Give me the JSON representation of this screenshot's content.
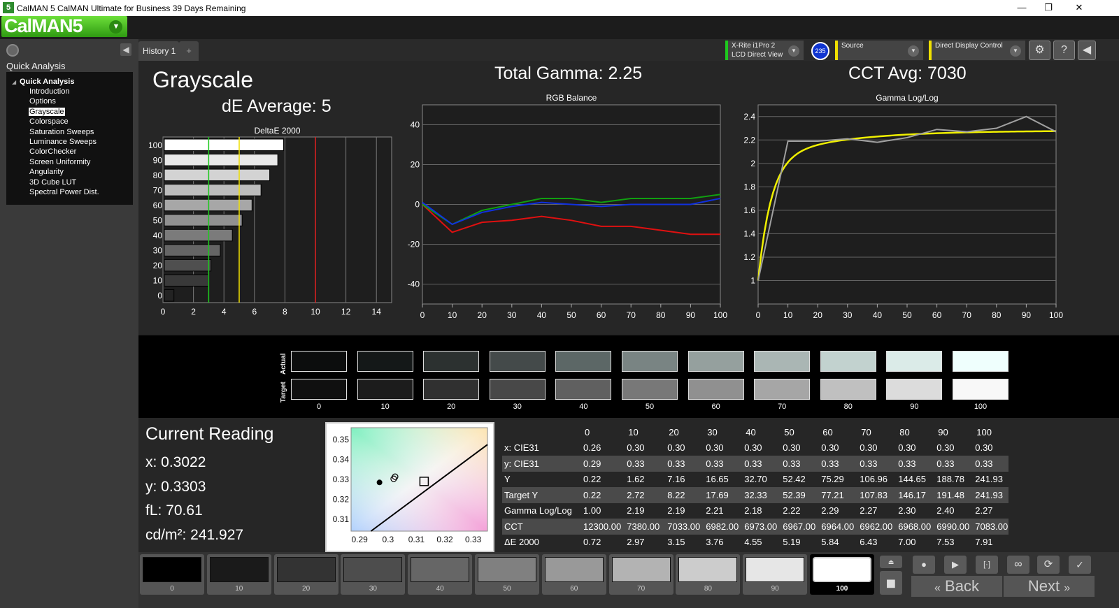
{
  "window": {
    "title": "CalMAN 5 CalMAN Ultimate for Business 39 Days Remaining",
    "icon_label": "5",
    "minimize": "—",
    "maximize": "❐",
    "close": "✕"
  },
  "logo": {
    "text": "CalMAN5",
    "caret_icon": "chevron-down-icon"
  },
  "sidebar": {
    "title": "Quick Analysis",
    "root": "Quick Analysis",
    "items": [
      "Introduction",
      "Options",
      "Grayscale",
      "Colorspace",
      "Saturation Sweeps",
      "Luminance Sweeps",
      "ColorChecker",
      "Screen Uniformity",
      "Angularity",
      "3D Cube LUT",
      "Spectral Power Dist."
    ],
    "selected": "Grayscale"
  },
  "tabs": {
    "history": "History 1",
    "add": "+"
  },
  "devices": {
    "meter_line1": "X-Rite i1Pro 2",
    "meter_line2": "LCD Direct View",
    "meter_badge": "235",
    "source": "Source",
    "display": "Direct Display Control",
    "accent_meter": "#1ec81e",
    "accent_source": "#f0e000",
    "accent_display": "#f0e000"
  },
  "headline": {
    "title": "Grayscale",
    "de_average": "dE Average: 5",
    "total_gamma": "Total Gamma: 2.25",
    "cct_avg": "CCT Avg: 7030"
  },
  "chart_data": [
    {
      "type": "bar",
      "title": "DeltaE 2000",
      "orientation": "horizontal",
      "categories": [
        "100",
        "90",
        "80",
        "70",
        "60",
        "50",
        "40",
        "30",
        "20",
        "10",
        "0"
      ],
      "values": [
        7.91,
        7.53,
        7.0,
        6.43,
        5.84,
        5.19,
        4.55,
        3.76,
        3.15,
        2.97,
        0.72
      ],
      "xlim": [
        0,
        15
      ],
      "xticks": [
        "0",
        "2",
        "4",
        "6",
        "8",
        "10",
        "12",
        "14"
      ],
      "reference_lines": [
        {
          "value": 3,
          "color": "#1ec81e"
        },
        {
          "value": 5,
          "color": "#f0e000"
        },
        {
          "value": 10,
          "color": "#e02020"
        }
      ]
    },
    {
      "type": "line",
      "title": "RGB Balance",
      "x": [
        0,
        10,
        20,
        30,
        40,
        50,
        60,
        70,
        80,
        90,
        100
      ],
      "ylim": [
        -50,
        50
      ],
      "yticks": [
        "40",
        "20",
        "0",
        "-20",
        "-40"
      ],
      "xticks": [
        "0",
        "10",
        "20",
        "30",
        "40",
        "50",
        "60",
        "70",
        "80",
        "90",
        "100"
      ],
      "series": [
        {
          "color": "#e01010",
          "values": [
            0,
            -14,
            -9,
            -8,
            -6,
            -8,
            -11,
            -11,
            -13,
            -15,
            -15
          ]
        },
        {
          "color": "#10a010",
          "values": [
            0,
            -10,
            -3,
            0,
            3,
            3,
            1,
            3,
            3,
            3,
            5
          ]
        },
        {
          "color": "#1030e0",
          "values": [
            1,
            -10,
            -4,
            -1,
            1,
            0,
            -1,
            0,
            0,
            0,
            3
          ]
        }
      ]
    },
    {
      "type": "line",
      "title": "Gamma Log/Log",
      "x": [
        0,
        10,
        20,
        30,
        40,
        50,
        60,
        70,
        80,
        90,
        100
      ],
      "ylim": [
        0.8,
        2.5
      ],
      "yticks": [
        "2.4",
        "2.2",
        "2",
        "1.8",
        "1.6",
        "1.4",
        "1.2",
        "1"
      ],
      "xticks": [
        "0",
        "10",
        "20",
        "30",
        "40",
        "50",
        "60",
        "70",
        "80",
        "90",
        "100"
      ],
      "series": [
        {
          "color": "#a0a0a0",
          "values": [
            1.0,
            2.19,
            2.19,
            2.21,
            2.18,
            2.22,
            2.29,
            2.27,
            2.3,
            2.4,
            2.27
          ]
        }
      ],
      "target": {
        "color": "#f0f000",
        "gamma_end": 2.28
      }
    },
    {
      "type": "scatter",
      "title": "CIE chromaticity",
      "xlim": [
        0.287,
        0.335
      ],
      "ylim": [
        0.304,
        0.356
      ],
      "xticks": [
        "0.29",
        "0.3",
        "0.31",
        "0.32",
        "0.33"
      ],
      "yticks": [
        "0.35",
        "0.34",
        "0.33",
        "0.32",
        "0.31"
      ],
      "points": [
        {
          "x": 0.297,
          "y": 0.3285,
          "marker": "filled-circle"
        },
        {
          "x": 0.302,
          "y": 0.3303,
          "marker": "open-circle"
        },
        {
          "x": 0.3127,
          "y": 0.329,
          "marker": "square"
        }
      ]
    }
  ],
  "swatches": {
    "actual_label": "Actual",
    "target_label": "Target",
    "labels": [
      "0",
      "10",
      "20",
      "30",
      "40",
      "50",
      "60",
      "70",
      "80",
      "90",
      "100"
    ],
    "actual_colors": [
      "#0c0d0d",
      "#141818",
      "#2c3130",
      "#444a4a",
      "#5c6766",
      "#798483",
      "#95a09e",
      "#aab6b4",
      "#c2d2cf",
      "#dbebe8",
      "#effffd"
    ],
    "target_colors": [
      "#101010",
      "#1c1c1c",
      "#303030",
      "#484848",
      "#606060",
      "#787878",
      "#909090",
      "#a6a6a6",
      "#c0c0c0",
      "#dcdcdc",
      "#f8f8f8"
    ]
  },
  "current_reading": {
    "title": "Current Reading",
    "x": "x: 0.3022",
    "y": "y: 0.3303",
    "fl": "fL: 70.61",
    "cdm2": "cd/m²: 241.927"
  },
  "table": {
    "columns": [
      "",
      "0",
      "10",
      "20",
      "30",
      "40",
      "50",
      "60",
      "70",
      "80",
      "90",
      "100"
    ],
    "rows": [
      [
        "x: CIE31",
        "0.26",
        "0.30",
        "0.30",
        "0.30",
        "0.30",
        "0.30",
        "0.30",
        "0.30",
        "0.30",
        "0.30",
        "0.30"
      ],
      [
        "y: CIE31",
        "0.29",
        "0.33",
        "0.33",
        "0.33",
        "0.33",
        "0.33",
        "0.33",
        "0.33",
        "0.33",
        "0.33",
        "0.33"
      ],
      [
        "Y",
        "0.22",
        "1.62",
        "7.16",
        "16.65",
        "32.70",
        "52.42",
        "75.29",
        "106.96",
        "144.65",
        "188.78",
        "241.93"
      ],
      [
        "Target Y",
        "0.22",
        "2.72",
        "8.22",
        "17.69",
        "32.33",
        "52.39",
        "77.21",
        "107.83",
        "146.17",
        "191.48",
        "241.93"
      ],
      [
        "Gamma Log/Log",
        "1.00",
        "2.19",
        "2.19",
        "2.21",
        "2.18",
        "2.22",
        "2.29",
        "2.27",
        "2.30",
        "2.40",
        "2.27"
      ],
      [
        "CCT",
        "12300.00",
        "7380.00",
        "7033.00",
        "6982.00",
        "6973.00",
        "6967.00",
        "6964.00",
        "6962.00",
        "6968.00",
        "6990.00",
        "7083.00"
      ],
      [
        "ΔE 2000",
        "0.72",
        "2.97",
        "3.15",
        "3.76",
        "4.55",
        "5.19",
        "5.84",
        "6.43",
        "7.00",
        "7.53",
        "7.91"
      ]
    ]
  },
  "patches": {
    "labels": [
      "0",
      "10",
      "20",
      "30",
      "40",
      "50",
      "60",
      "70",
      "80",
      "90",
      "100"
    ],
    "colors": [
      "#000000",
      "#1a1a1a",
      "#333333",
      "#4d4d4d",
      "#666666",
      "#808080",
      "#999999",
      "#b3b3b3",
      "#cccccc",
      "#e6e6e6",
      "#ffffff"
    ],
    "selected": "100"
  },
  "controls": {
    "back": "Back",
    "next": "Next",
    "back_icon": "double-chevron-left-icon",
    "next_icon": "double-chevron-right-icon"
  }
}
